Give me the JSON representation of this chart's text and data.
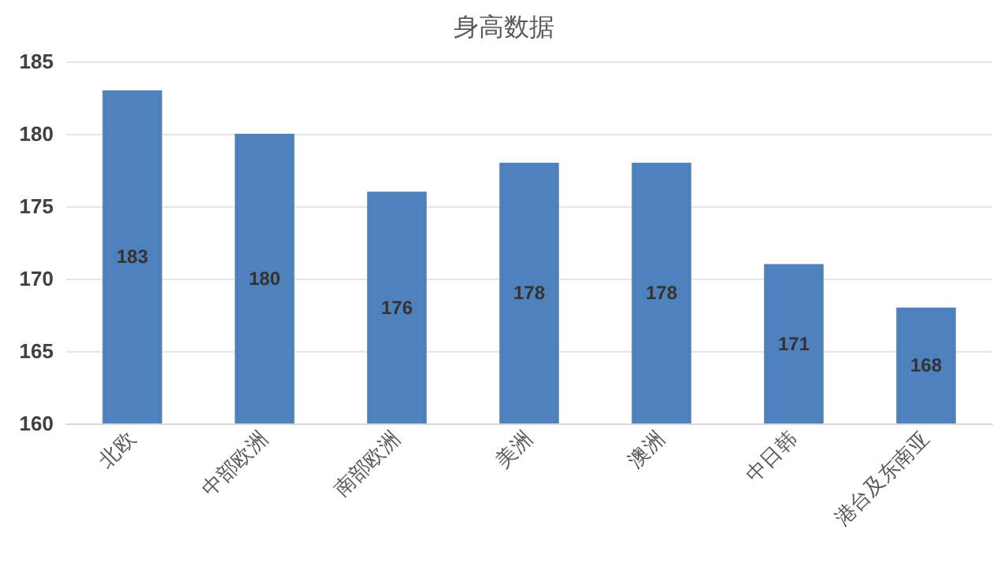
{
  "chart_data": {
    "type": "bar",
    "title": "身高数据",
    "categories": [
      "北欧",
      "中部欧洲",
      "南部欧洲",
      "美洲",
      "澳洲",
      "中日韩",
      "港台及东南亚"
    ],
    "values": [
      183,
      180,
      176,
      178,
      178,
      171,
      168
    ],
    "color": "#4f81bd",
    "ylim": [
      160,
      185
    ],
    "yticks": [
      160,
      165,
      170,
      175,
      180,
      185
    ],
    "grid": "y",
    "data_labels": true
  }
}
